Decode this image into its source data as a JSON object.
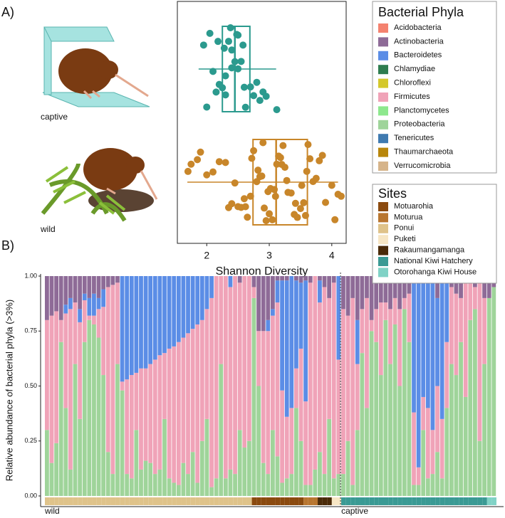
{
  "chart_data": [
    {
      "type": "boxplot",
      "panel_label": "A)",
      "xlabel": "Shannon Diversity",
      "xlim": [
        1.53,
        4.23
      ],
      "xticks": [
        2,
        3,
        4
      ],
      "groups": [
        {
          "name": "captive",
          "color": "#2b9a8e",
          "stats": {
            "whisker_low": 1.87,
            "q1": 2.25,
            "median": 2.45,
            "q3": 2.69,
            "whisker_high": 3.11
          },
          "values": [
            2.0,
            2.1,
            2.15,
            2.2,
            2.25,
            2.3,
            2.3,
            2.35,
            2.4,
            2.4,
            2.45,
            2.5,
            2.5,
            2.55,
            2.6,
            2.62,
            2.7,
            2.75,
            2.8,
            2.85,
            2.9,
            2.95,
            1.95,
            2.05,
            2.18,
            2.28,
            2.38,
            2.48,
            2.58,
            3.12
          ]
        },
        {
          "name": "wild",
          "color": "#c8862a",
          "stats": {
            "whisker_low": 1.69,
            "q1": 2.74,
            "median": 3.11,
            "q3": 3.61,
            "whisker_high": 4.1
          },
          "values": [
            1.7,
            1.75,
            1.85,
            1.9,
            2.0,
            2.1,
            2.2,
            2.3,
            2.4,
            2.45,
            2.5,
            2.55,
            2.6,
            2.65,
            2.7,
            2.72,
            2.75,
            2.8,
            2.82,
            2.85,
            2.88,
            2.9,
            2.92,
            2.95,
            2.98,
            3.0,
            3.02,
            3.05,
            3.08,
            3.1,
            3.12,
            3.15,
            3.18,
            3.2,
            3.22,
            3.25,
            3.28,
            3.3,
            3.35,
            3.4,
            3.45,
            3.5,
            3.52,
            3.55,
            3.58,
            3.6,
            3.62,
            3.65,
            3.7,
            3.75,
            3.8,
            3.85,
            3.9,
            4.0,
            4.05,
            4.1,
            4.15,
            2.35,
            2.62,
            3.42
          ]
        }
      ]
    },
    {
      "type": "stacked_bar",
      "panel_label": "B)",
      "ylabel": "Relative abundance of bacterial phyla (>3%)",
      "ylim": [
        0,
        1
      ],
      "yticks": [
        {
          "value": 0,
          "label": "0.00"
        },
        {
          "value": 0.25,
          "label": "0.25"
        },
        {
          "value": 0.5,
          "label": "0.50"
        },
        {
          "value": 0.75,
          "label": "0.75"
        },
        {
          "value": 1,
          "label": "1.00"
        }
      ],
      "phyla_legend": {
        "title": "Bacterial Phyla",
        "entries": [
          {
            "name": "Acidobacteria",
            "color": "#f4826f"
          },
          {
            "name": "Actinobacteria",
            "color": "#8e6b97"
          },
          {
            "name": "Bacteroidetes",
            "color": "#5b8de6"
          },
          {
            "name": "Chlamydiae",
            "color": "#2e7d4f"
          },
          {
            "name": "Chloroflexi",
            "color": "#d4c82b"
          },
          {
            "name": "Firmicutes",
            "color": "#f0a3b8"
          },
          {
            "name": "Planctomycetes",
            "color": "#8de88d"
          },
          {
            "name": "Proteobacteria",
            "color": "#9fd49a"
          },
          {
            "name": "Tenericutes",
            "color": "#3f7ab0"
          },
          {
            "name": "Thaumarchaeota",
            "color": "#b8860b"
          },
          {
            "name": "Verrucomicrobia",
            "color": "#d6b48a"
          }
        ]
      },
      "sites_legend": {
        "title": "Sites",
        "entries": [
          {
            "name": "Motuarohia",
            "color": "#8b4a0f"
          },
          {
            "name": "Moturua",
            "color": "#b87630"
          },
          {
            "name": "Ponui",
            "color": "#dfc38a"
          },
          {
            "name": "Puketi",
            "color": "#f7e6c4"
          },
          {
            "name": "Rakaumangamanga",
            "color": "#4a2a08"
          },
          {
            "name": "National Kiwi Hatchery",
            "color": "#3a9a94"
          },
          {
            "name": "Otorohanga Kiwi House",
            "color": "#80d2c6"
          }
        ]
      },
      "groups": [
        {
          "label": "wild",
          "start": 0
        },
        {
          "label": "captive",
          "start": 63
        }
      ],
      "bar_sites": [
        2,
        2,
        2,
        2,
        2,
        2,
        2,
        2,
        2,
        2,
        2,
        2,
        2,
        2,
        2,
        2,
        2,
        2,
        2,
        2,
        2,
        2,
        2,
        2,
        2,
        2,
        2,
        2,
        2,
        2,
        2,
        2,
        2,
        2,
        2,
        2,
        2,
        2,
        2,
        2,
        2,
        2,
        2,
        2,
        0,
        0,
        0,
        0,
        0,
        0,
        0,
        0,
        0,
        0,
        0,
        1,
        1,
        1,
        4,
        4,
        4,
        3,
        3,
        5,
        5,
        5,
        5,
        5,
        5,
        5,
        5,
        5,
        5,
        5,
        5,
        5,
        5,
        5,
        5,
        5,
        5,
        5,
        5,
        5,
        5,
        5,
        5,
        5,
        5,
        5,
        5,
        5,
        5,
        5,
        6,
        6
      ],
      "series": [
        {
          "phylum": 7,
          "values": [
            0.3,
            0.15,
            0.24,
            0.7,
            0.4,
            0.12,
            0.6,
            0.35,
            0.7,
            0.8,
            0.78,
            0.72,
            0.55,
            0.2,
            0.1,
            0.6,
            0.48,
            0.1,
            0.08,
            0.3,
            0.12,
            0.16,
            0.15,
            0.1,
            0.12,
            0.35,
            0.08,
            0.06,
            0.05,
            0.15,
            0.1,
            0.2,
            0.06,
            0.25,
            0.35,
            0.04,
            0.08,
            0.6,
            0.08,
            0.12,
            0.1,
            0.3,
            0.22,
            0.25,
            0.9,
            0.5,
            0.15,
            0.1,
            0.3,
            0.18,
            0.06,
            0.08,
            0.1,
            0.4,
            0.25,
            0.05,
            0.05,
            0.12,
            0.2,
            0.1,
            0.35,
            0.08,
            0.1,
            0.1,
            0.25,
            0.05,
            0.3,
            0.65,
            0.4,
            0.75,
            0.7,
            0.55,
            0.8,
            0.6,
            0.78,
            0.5,
            0.85,
            0.7,
            0.05,
            0.05,
            0.3,
            0.08,
            0.1,
            0.2,
            0.08,
            0.4,
            0.6,
            0.55,
            0.7,
            0.45,
            0.8,
            0.85,
            0.25,
            0.6,
            0.9,
            0.95
          ]
        },
        {
          "phylum": 5,
          "values": [
            0.5,
            0.67,
            0.6,
            0.1,
            0.43,
            0.73,
            0.28,
            0.44,
            0.19,
            0.02,
            0.04,
            0.13,
            0.31,
            0.75,
            0.86,
            0.37,
            0.04,
            0.43,
            0.47,
            0.26,
            0.46,
            0.42,
            0.45,
            0.52,
            0.52,
            0.3,
            0.59,
            0.62,
            0.65,
            0.57,
            0.64,
            0.56,
            0.72,
            0.55,
            0.5,
            0.86,
            0.92,
            0.4,
            0.92,
            0.83,
            0.9,
            0.67,
            0.78,
            0.75,
            0.05,
            0.25,
            0.6,
            0.65,
            0.52,
            0.7,
            0.42,
            0.28,
            0.3,
            0.18,
            0.42,
            0.38,
            0.92,
            0.88,
            0.68,
            0.85,
            0.55,
            0.89,
            0.52,
            0.75,
            0.57,
            0.85,
            0.3,
            0.2,
            0.5,
            0.05,
            0.15,
            0.33,
            0.08,
            0.25,
            0.12,
            0.35,
            0.05,
            0.22,
            0.33,
            0.08,
            0.15,
            0.32,
            0.2,
            0.3,
            0.27,
            0.3,
            0.35,
            0.37,
            0.2,
            0.55,
            0.2,
            0.1,
            0.75,
            0.3,
            0,
            0
          ]
        },
        {
          "phylum": 2,
          "values": [
            0,
            0,
            0,
            0,
            0.04,
            0.05,
            0,
            0.06,
            0.03,
            0.08,
            0.1,
            0.05,
            0.08,
            0,
            0,
            0,
            0.48,
            0.47,
            0.45,
            0.44,
            0.42,
            0.42,
            0.4,
            0.38,
            0.36,
            0.35,
            0.33,
            0.32,
            0.3,
            0.28,
            0.26,
            0.24,
            0.22,
            0.2,
            0.15,
            0.1,
            0,
            0,
            0,
            0.05,
            0,
            0,
            0,
            0,
            0,
            0,
            0,
            0.05,
            0.03,
            0.1,
            0.5,
            0.62,
            0.6,
            0.4,
            0.3,
            0.55,
            0,
            0,
            0.1,
            0,
            0,
            0,
            0.38,
            0,
            0,
            0,
            0.2,
            0,
            0,
            0,
            0,
            0,
            0,
            0,
            0,
            0,
            0,
            0,
            0.6,
            0.85,
            0.55,
            0.6,
            0.7,
            0.4,
            0.65,
            0.3,
            0,
            0,
            0,
            0,
            0,
            0,
            0,
            0,
            0,
            0
          ]
        },
        {
          "phylum": 1,
          "values": [
            0.2,
            0.18,
            0.16,
            0.2,
            0.13,
            0.1,
            0.12,
            0.15,
            0.08,
            0.1,
            0.08,
            0.1,
            0.06,
            0.05,
            0.04,
            0.03,
            0,
            0,
            0,
            0,
            0,
            0,
            0,
            0,
            0,
            0,
            0,
            0,
            0,
            0,
            0,
            0,
            0,
            0,
            0,
            0,
            0,
            0,
            0,
            0,
            0,
            0.03,
            0,
            0,
            0.05,
            0.25,
            0.25,
            0.2,
            0.15,
            0.02,
            0.02,
            0.02,
            0,
            0.02,
            0.03,
            0.02,
            0.03,
            0,
            0.02,
            0.05,
            0.1,
            0.03,
            0,
            0.15,
            0.18,
            0.1,
            0.2,
            0.15,
            0.1,
            0.2,
            0.15,
            0.12,
            0.12,
            0.15,
            0.1,
            0.15,
            0.1,
            0.08,
            0.02,
            0.02,
            0,
            0,
            0,
            0.1,
            0,
            0,
            0.05,
            0.08,
            0.1,
            0,
            0,
            0.05,
            0,
            0.1,
            0.1,
            0.05
          ]
        }
      ]
    }
  ]
}
